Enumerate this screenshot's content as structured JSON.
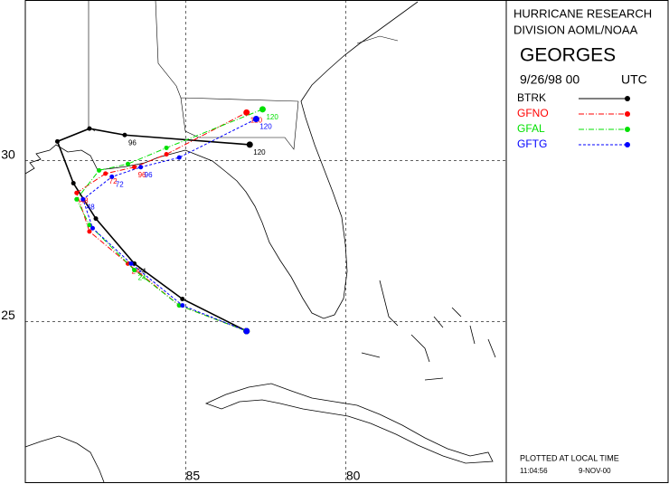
{
  "chart_data": {
    "type": "track",
    "title": "GEORGES",
    "header": [
      "HURRICANE RESEARCH",
      "DIVISION AOML/NOAA"
    ],
    "date": "9/26/98 00",
    "timezone": "UTC",
    "footer": [
      "PLOTTED AT LOCAL TIME",
      "11:04:56",
      "9-NOV-00"
    ],
    "xlim": [
      90,
      75
    ],
    "ylim": [
      20,
      35
    ],
    "xticks": [
      85,
      80
    ],
    "yticks": [
      30,
      25
    ],
    "grid": true,
    "series": [
      {
        "name": "BTRK",
        "color": "#000000",
        "dash": "none",
        "lon": [
          83.1,
          85.1,
          86.6,
          87.8,
          88.5,
          89.0,
          88.0,
          86.9,
          83.0
        ],
        "lat": [
          24.7,
          25.7,
          26.8,
          28.2,
          29.3,
          30.6,
          31.0,
          30.8,
          30.5
        ],
        "labels": [
          null,
          null,
          "24",
          null,
          null,
          null,
          null,
          "96",
          "120"
        ]
      },
      {
        "name": "GFNO",
        "color": "#ff0000",
        "dash": "6 2 1 2",
        "lon": [
          83.1,
          85.2,
          86.8,
          88.0,
          88.4,
          87.5,
          86.6,
          85.6,
          83.1
        ],
        "lat": [
          24.7,
          25.5,
          26.8,
          27.8,
          29.0,
          29.6,
          29.8,
          30.2,
          31.5
        ],
        "labels": [
          null,
          null,
          "24",
          null,
          "48",
          "72",
          "96",
          null,
          "120"
        ]
      },
      {
        "name": "GFAL",
        "color": "#00e000",
        "dash": "6 2 1 2",
        "lon": [
          83.1,
          85.2,
          86.6,
          88.0,
          88.4,
          87.7,
          86.8,
          85.6,
          82.6
        ],
        "lat": [
          24.7,
          25.5,
          26.6,
          28.0,
          28.8,
          29.7,
          29.9,
          30.4,
          31.6
        ],
        "labels": [
          null,
          null,
          "24",
          null,
          null,
          null,
          null,
          null,
          "120"
        ]
      },
      {
        "name": "GFTG",
        "color": "#0000ff",
        "dash": "3 2",
        "lon": [
          83.1,
          85.1,
          86.7,
          87.9,
          88.2,
          87.3,
          86.4,
          85.2,
          82.8
        ],
        "lat": [
          24.7,
          25.5,
          26.8,
          27.9,
          28.8,
          29.5,
          29.8,
          30.1,
          31.3
        ],
        "labels": [
          null,
          null,
          null,
          null,
          "48",
          "72",
          "96",
          null,
          "120"
        ]
      }
    ]
  }
}
